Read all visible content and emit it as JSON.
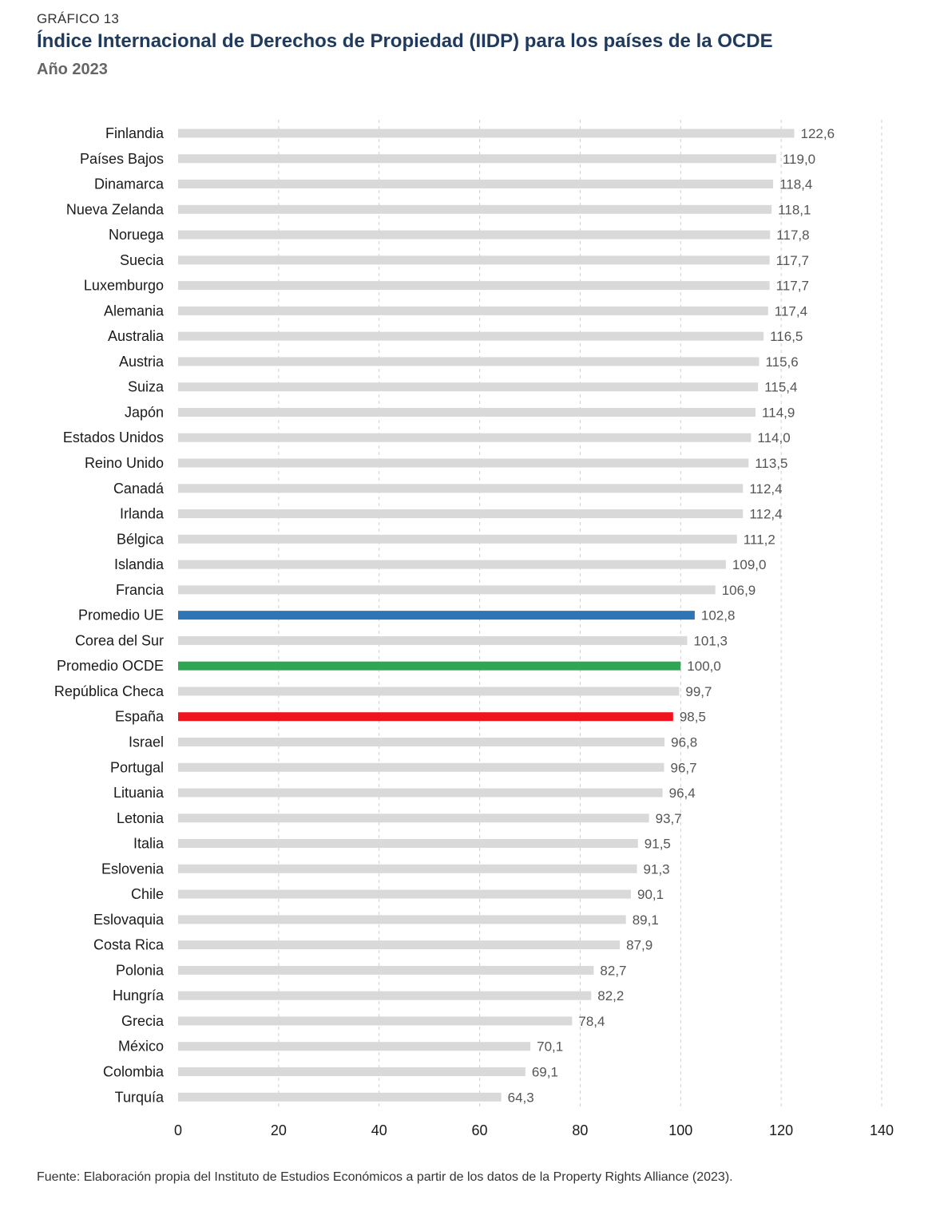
{
  "header": {
    "kicker": "GRÁFICO 13",
    "title": "Índice Internacional de Derechos de Propiedad (IIDP) para los países de la OCDE",
    "subtitle": "Año 2023"
  },
  "chart_data": {
    "type": "bar",
    "orientation": "horizontal",
    "title": "Índice Internacional de Derechos de Propiedad (IIDP) para los países de la OCDE",
    "subtitle": "Año 2023",
    "xlabel": "",
    "ylabel": "",
    "xlim": [
      0,
      140
    ],
    "xticks": [
      0,
      20,
      40,
      60,
      80,
      100,
      120,
      140
    ],
    "grid": "vertical dashed",
    "colors": {
      "default": "#d9d9d9",
      "Promedio UE": "#2e75b6",
      "Promedio OCDE": "#2ea654",
      "España": "#f0141e"
    },
    "categories": [
      "Finlandia",
      "Países Bajos",
      "Dinamarca",
      "Nueva Zelanda",
      "Noruega",
      "Suecia",
      "Luxemburgo",
      "Alemania",
      "Australia",
      "Austria",
      "Suiza",
      "Japón",
      "Estados Unidos",
      "Reino Unido",
      "Canadá",
      "Irlanda",
      "Bélgica",
      "Islandia",
      "Francia",
      "Promedio UE",
      "Corea del Sur",
      "Promedio OCDE",
      "República Checa",
      "España",
      "Israel",
      "Portugal",
      "Lituania",
      "Letonia",
      "Italia",
      "Eslovenia",
      "Chile",
      "Eslovaquia",
      "Costa Rica",
      "Polonia",
      "Hungría",
      "Grecia",
      "México",
      "Colombia",
      "Turquía"
    ],
    "values": [
      122.6,
      119.0,
      118.4,
      118.1,
      117.8,
      117.7,
      117.7,
      117.4,
      116.5,
      115.6,
      115.4,
      114.9,
      114.0,
      113.5,
      112.4,
      112.4,
      111.2,
      109.0,
      106.9,
      102.8,
      101.3,
      100.0,
      99.7,
      98.5,
      96.8,
      96.7,
      96.4,
      93.7,
      91.5,
      91.3,
      90.1,
      89.1,
      87.9,
      82.7,
      82.2,
      78.4,
      70.1,
      69.1,
      64.3
    ],
    "value_labels": [
      "122,6",
      "119,0",
      "118,4",
      "118,1",
      "117,8",
      "117,7",
      "117,7",
      "117,4",
      "116,5",
      "115,6",
      "115,4",
      "114,9",
      "114,0",
      "113,5",
      "112,4",
      "112,4",
      "111,2",
      "109,0",
      "106,9",
      "102,8",
      "101,3",
      "100,0",
      "99,7",
      "98,5",
      "96,8",
      "96,7",
      "96,4",
      "93,7",
      "91,5",
      "91,3",
      "90,1",
      "89,1",
      "87,9",
      "82,7",
      "82,2",
      "78,4",
      "70,1",
      "69,1",
      "64,3"
    ]
  },
  "footer": {
    "source": "Fuente: Elaboración propia del Instituto de Estudios Económicos a partir de los datos de la Property Rights Alliance (2023)."
  }
}
